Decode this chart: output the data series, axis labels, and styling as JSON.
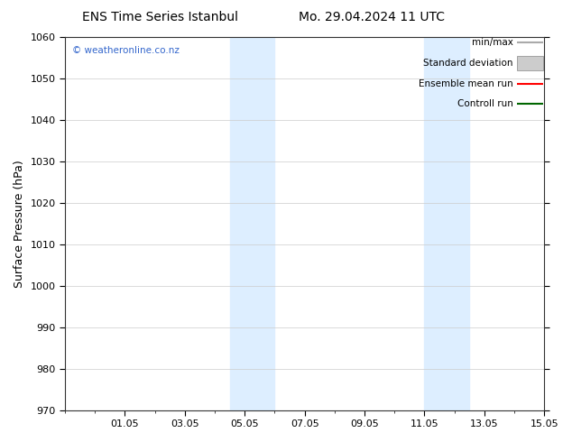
{
  "title_left": "ENS Time Series Istanbul",
  "title_right": "Mo. 29.04.2024 11 UTC",
  "ylabel": "Surface Pressure (hPa)",
  "ylim": [
    970,
    1060
  ],
  "yticks": [
    970,
    980,
    990,
    1000,
    1010,
    1020,
    1030,
    1040,
    1050,
    1060
  ],
  "xtick_labels": [
    "01.05",
    "03.05",
    "05.05",
    "07.05",
    "09.05",
    "11.05",
    "13.05",
    "15.05"
  ],
  "xtick_positions": [
    2,
    4,
    6,
    8,
    10,
    12,
    14,
    16
  ],
  "xlim": [
    0,
    16
  ],
  "shaded_bands": [
    {
      "x_start": 5.5,
      "x_end": 7.0
    },
    {
      "x_start": 12.0,
      "x_end": 13.5
    }
  ],
  "shaded_color": "#ddeeff",
  "background_color": "#ffffff",
  "grid_color": "#cccccc",
  "watermark_text": "© weatheronline.co.nz",
  "watermark_color": "#3366cc",
  "legend_items": [
    {
      "label": "min/max",
      "color": "#aaaaaa",
      "style": "line"
    },
    {
      "label": "Standard deviation",
      "color": "#cccccc",
      "style": "band"
    },
    {
      "label": "Ensemble mean run",
      "color": "#ff0000",
      "style": "line"
    },
    {
      "label": "Controll run",
      "color": "#006600",
      "style": "line"
    }
  ],
  "font_family": "DejaVu Sans",
  "tick_fontsize": 8,
  "label_fontsize": 9,
  "title_fontsize": 10,
  "legend_fontsize": 7.5
}
